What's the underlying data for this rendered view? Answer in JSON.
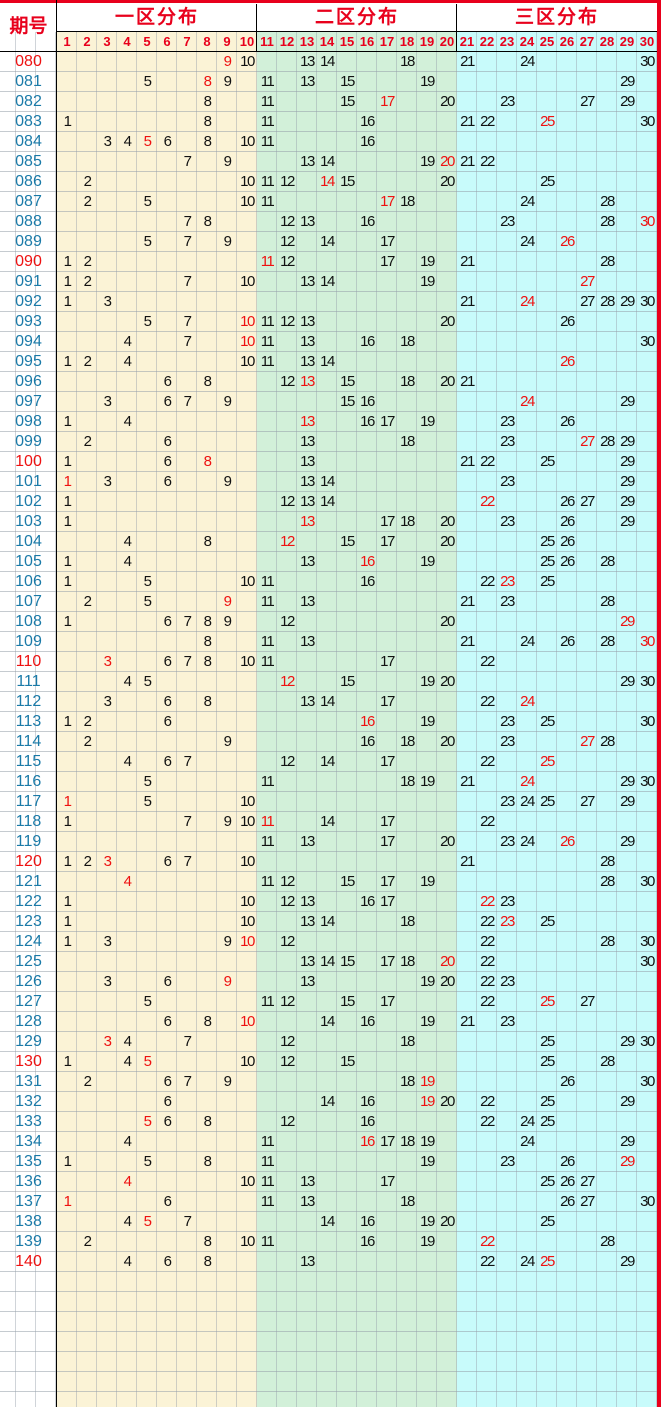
{
  "header": {
    "issue_col": "期号",
    "zones": [
      {
        "title": "一区分布",
        "numbers": [
          "1",
          "2",
          "3",
          "4",
          "5",
          "6",
          "7",
          "8",
          "9",
          "10"
        ]
      },
      {
        "title": "二区分布",
        "numbers": [
          "11",
          "12",
          "13",
          "14",
          "15",
          "16",
          "17",
          "18",
          "19",
          "20"
        ]
      },
      {
        "title": "三区分布",
        "numbers": [
          "21",
          "22",
          "23",
          "24",
          "25",
          "26",
          "27",
          "28",
          "29",
          "30"
        ]
      }
    ],
    "header_hot_numbers": [
      8,
      9,
      10,
      20
    ]
  },
  "colors": {
    "accent_red": "#e8001c",
    "issue_blue": "#1a7aa8",
    "zone1_bg": "#fbf3d6",
    "zone2_bg": "#d2f0d9",
    "zone3_bg": "#c8fbfb"
  },
  "empty_rows_after_data": 7,
  "rows": [
    {
      "issue": "080",
      "issue_hot": true,
      "nums": [
        9,
        10,
        13,
        14,
        18,
        21,
        24,
        30
      ],
      "hot": [
        9
      ]
    },
    {
      "issue": "081",
      "nums": [
        5,
        8,
        9,
        11,
        13,
        15,
        19,
        29
      ],
      "hot": [
        8
      ]
    },
    {
      "issue": "082",
      "nums": [
        8,
        11,
        15,
        17,
        20,
        23,
        27,
        29
      ],
      "hot": [
        17
      ]
    },
    {
      "issue": "083",
      "nums": [
        1,
        8,
        11,
        16,
        21,
        22,
        25,
        30
      ],
      "hot": [
        25
      ]
    },
    {
      "issue": "084",
      "nums": [
        3,
        4,
        5,
        6,
        8,
        10,
        11,
        16
      ],
      "hot": [
        5
      ]
    },
    {
      "issue": "085",
      "nums": [
        7,
        9,
        13,
        14,
        19,
        20,
        21,
        22
      ],
      "hot": [
        20
      ]
    },
    {
      "issue": "086",
      "nums": [
        2,
        10,
        11,
        12,
        14,
        15,
        20,
        25
      ],
      "hot": [
        14
      ]
    },
    {
      "issue": "087",
      "nums": [
        2,
        5,
        10,
        11,
        17,
        18,
        24,
        28
      ],
      "hot": [
        17
      ]
    },
    {
      "issue": "088",
      "nums": [
        7,
        8,
        12,
        13,
        16,
        23,
        28,
        30
      ],
      "hot": [
        30
      ]
    },
    {
      "issue": "089",
      "nums": [
        5,
        7,
        9,
        12,
        14,
        17,
        24,
        26
      ],
      "hot": [
        26
      ]
    },
    {
      "issue": "090",
      "issue_hot": true,
      "nums": [
        1,
        2,
        11,
        12,
        17,
        19,
        21,
        28
      ],
      "hot": [
        11
      ]
    },
    {
      "issue": "091",
      "nums": [
        1,
        2,
        7,
        10,
        13,
        14,
        19,
        27
      ],
      "hot": [
        27
      ]
    },
    {
      "issue": "092",
      "nums": [
        1,
        3,
        21,
        24,
        27,
        28,
        29,
        30
      ],
      "hot": [
        24
      ]
    },
    {
      "issue": "093",
      "nums": [
        5,
        7,
        10,
        11,
        12,
        13,
        20,
        26
      ],
      "hot": [
        10
      ]
    },
    {
      "issue": "094",
      "nums": [
        4,
        7,
        10,
        11,
        13,
        16,
        18,
        30
      ],
      "hot": [
        10
      ]
    },
    {
      "issue": "095",
      "nums": [
        1,
        2,
        4,
        10,
        11,
        13,
        14,
        26
      ],
      "hot": [
        26
      ]
    },
    {
      "issue": "096",
      "nums": [
        6,
        8,
        12,
        13,
        15,
        18,
        20,
        21
      ],
      "hot": [
        13
      ]
    },
    {
      "issue": "097",
      "nums": [
        3,
        6,
        7,
        9,
        15,
        16,
        24,
        29
      ],
      "hot": [
        24
      ]
    },
    {
      "issue": "098",
      "nums": [
        1,
        4,
        13,
        16,
        17,
        19,
        23,
        26
      ],
      "hot": [
        13
      ]
    },
    {
      "issue": "099",
      "nums": [
        2,
        6,
        13,
        18,
        23,
        27,
        28,
        29
      ],
      "hot": [
        27
      ]
    },
    {
      "issue": "100",
      "issue_hot": true,
      "nums": [
        1,
        6,
        8,
        13,
        21,
        22,
        25,
        29
      ],
      "hot": [
        8
      ]
    },
    {
      "issue": "101",
      "nums": [
        1,
        3,
        6,
        9,
        13,
        14,
        23,
        29
      ],
      "hot": [
        1
      ]
    },
    {
      "issue": "102",
      "nums": [
        1,
        12,
        13,
        14,
        22,
        26,
        27,
        29
      ],
      "hot": [
        22
      ]
    },
    {
      "issue": "103",
      "nums": [
        1,
        13,
        17,
        18,
        20,
        23,
        26,
        29
      ],
      "hot": [
        13
      ]
    },
    {
      "issue": "104",
      "nums": [
        4,
        8,
        12,
        15,
        17,
        20,
        25,
        26
      ],
      "hot": [
        12
      ]
    },
    {
      "issue": "105",
      "nums": [
        1,
        4,
        13,
        16,
        19,
        25,
        26,
        28
      ],
      "hot": [
        16
      ]
    },
    {
      "issue": "106",
      "nums": [
        1,
        5,
        10,
        11,
        16,
        22,
        23,
        25
      ],
      "hot": [
        23
      ]
    },
    {
      "issue": "107",
      "nums": [
        2,
        5,
        9,
        11,
        13,
        21,
        23,
        28
      ],
      "hot": [
        9
      ]
    },
    {
      "issue": "108",
      "nums": [
        1,
        6,
        7,
        8,
        9,
        12,
        20,
        29
      ],
      "hot": [
        29
      ]
    },
    {
      "issue": "109",
      "nums": [
        8,
        11,
        13,
        21,
        24,
        26,
        28,
        30
      ],
      "hot": [
        30
      ]
    },
    {
      "issue": "110",
      "issue_hot": true,
      "nums": [
        3,
        6,
        7,
        8,
        10,
        11,
        17,
        22
      ],
      "hot": [
        3
      ]
    },
    {
      "issue": "111",
      "nums": [
        4,
        5,
        12,
        15,
        19,
        20,
        29,
        30
      ],
      "hot": [
        12
      ]
    },
    {
      "issue": "112",
      "nums": [
        3,
        6,
        8,
        13,
        14,
        17,
        22,
        24
      ],
      "hot": [
        24
      ]
    },
    {
      "issue": "113",
      "nums": [
        1,
        2,
        6,
        16,
        19,
        23,
        25,
        30
      ],
      "hot": [
        16
      ]
    },
    {
      "issue": "114",
      "nums": [
        2,
        9,
        16,
        18,
        20,
        23,
        27,
        28
      ],
      "hot": [
        27
      ]
    },
    {
      "issue": "115",
      "nums": [
        4,
        6,
        7,
        12,
        14,
        17,
        22,
        25
      ],
      "hot": [
        25
      ]
    },
    {
      "issue": "116",
      "nums": [
        5,
        11,
        18,
        19,
        21,
        24,
        29,
        30
      ],
      "hot": [
        24
      ]
    },
    {
      "issue": "117",
      "nums": [
        1,
        5,
        10,
        23,
        24,
        25,
        27,
        29
      ],
      "hot": [
        1
      ]
    },
    {
      "issue": "118",
      "nums": [
        1,
        7,
        9,
        10,
        11,
        14,
        17,
        22
      ],
      "hot": [
        11
      ]
    },
    {
      "issue": "119",
      "nums": [
        11,
        13,
        17,
        20,
        23,
        24,
        26,
        29
      ],
      "hot": [
        26
      ]
    },
    {
      "issue": "120",
      "issue_hot": true,
      "nums": [
        1,
        2,
        3,
        6,
        7,
        10,
        21,
        28
      ],
      "hot": [
        3
      ]
    },
    {
      "issue": "121",
      "nums": [
        4,
        11,
        12,
        15,
        17,
        19,
        28,
        30
      ],
      "hot": [
        4
      ]
    },
    {
      "issue": "122",
      "nums": [
        1,
        10,
        12,
        13,
        16,
        17,
        22,
        23
      ],
      "hot": [
        22
      ]
    },
    {
      "issue": "123",
      "nums": [
        1,
        10,
        13,
        14,
        18,
        22,
        23,
        25
      ],
      "hot": [
        23
      ]
    },
    {
      "issue": "124",
      "nums": [
        1,
        3,
        9,
        10,
        12,
        22,
        28,
        30
      ],
      "hot": [
        10
      ]
    },
    {
      "issue": "125",
      "nums": [
        13,
        14,
        15,
        17,
        18,
        20,
        22,
        30
      ],
      "hot": [
        20
      ]
    },
    {
      "issue": "126",
      "nums": [
        3,
        6,
        9,
        13,
        19,
        20,
        22,
        23
      ],
      "hot": [
        9
      ]
    },
    {
      "issue": "127",
      "nums": [
        5,
        11,
        12,
        15,
        17,
        22,
        25,
        27
      ],
      "hot": [
        25
      ]
    },
    {
      "issue": "128",
      "nums": [
        6,
        8,
        10,
        14,
        16,
        19,
        21,
        23
      ],
      "hot": [
        10
      ]
    },
    {
      "issue": "129",
      "nums": [
        3,
        4,
        7,
        12,
        18,
        25,
        29,
        30
      ],
      "hot": [
        3
      ]
    },
    {
      "issue": "130",
      "issue_hot": true,
      "nums": [
        1,
        4,
        5,
        10,
        12,
        15,
        25,
        28
      ],
      "hot": [
        5
      ]
    },
    {
      "issue": "131",
      "nums": [
        2,
        6,
        7,
        9,
        18,
        19,
        26,
        30
      ],
      "hot": [
        19
      ]
    },
    {
      "issue": "132",
      "nums": [
        6,
        14,
        16,
        19,
        20,
        22,
        25,
        29
      ],
      "hot": [
        19
      ]
    },
    {
      "issue": "133",
      "nums": [
        5,
        6,
        8,
        12,
        16,
        22,
        24,
        25
      ],
      "hot": [
        5
      ]
    },
    {
      "issue": "134",
      "nums": [
        4,
        11,
        16,
        17,
        18,
        19,
        24,
        29
      ],
      "hot": [
        16
      ]
    },
    {
      "issue": "135",
      "nums": [
        1,
        5,
        8,
        11,
        19,
        23,
        26,
        29
      ],
      "hot": [
        29
      ]
    },
    {
      "issue": "136",
      "nums": [
        4,
        10,
        11,
        13,
        17,
        25,
        26,
        27
      ],
      "hot": [
        4
      ]
    },
    {
      "issue": "137",
      "nums": [
        1,
        6,
        11,
        13,
        18,
        26,
        27,
        30
      ],
      "hot": [
        1
      ]
    },
    {
      "issue": "138",
      "nums": [
        4,
        5,
        7,
        14,
        16,
        19,
        20,
        25
      ],
      "hot": [
        5
      ]
    },
    {
      "issue": "139",
      "nums": [
        2,
        8,
        10,
        11,
        16,
        19,
        22,
        28
      ],
      "hot": [
        22
      ]
    },
    {
      "issue": "140",
      "issue_hot": true,
      "nums": [
        4,
        6,
        8,
        13,
        22,
        24,
        25,
        29
      ],
      "hot": [
        25
      ]
    }
  ]
}
